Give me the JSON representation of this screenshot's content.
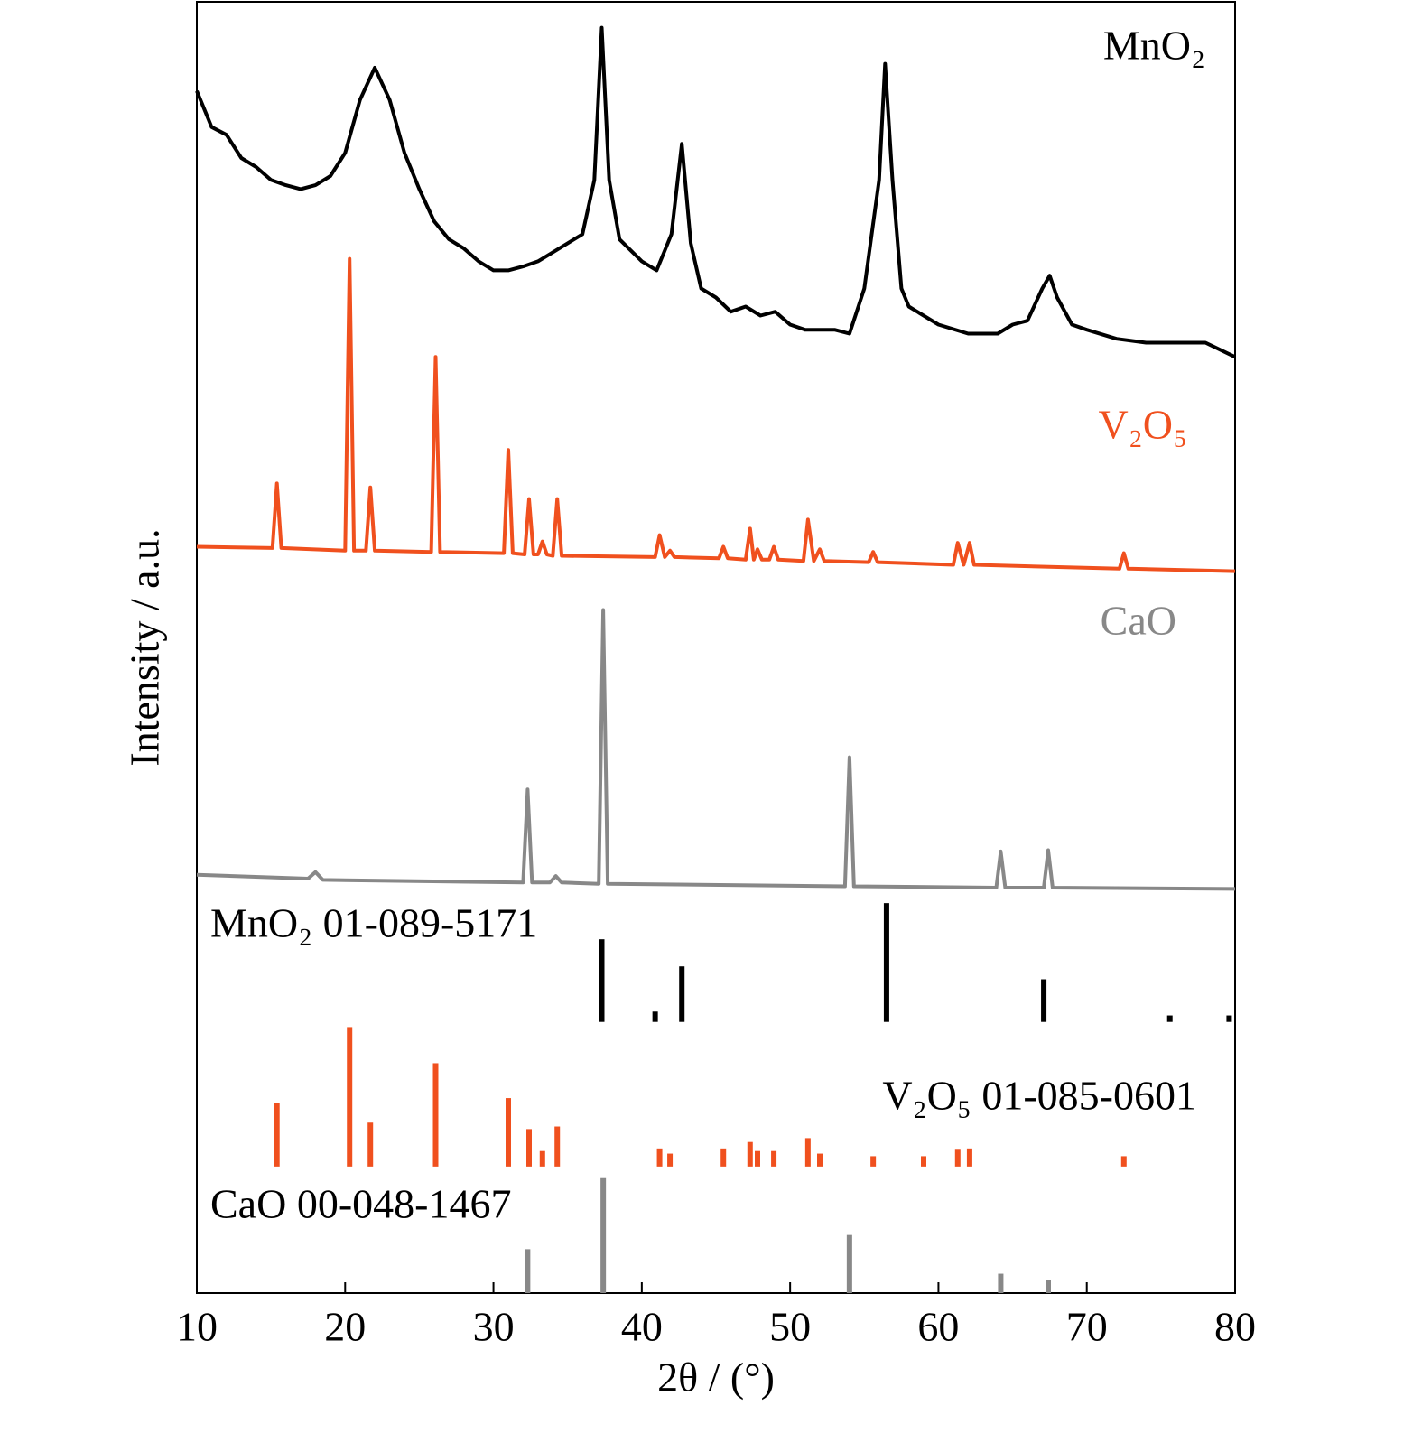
{
  "chart_data": {
    "type": "xrd",
    "x_label": "2θ / (°)",
    "y_label": "Intensity / a.u.",
    "xlim": [
      10,
      80
    ],
    "xticks": [
      10,
      20,
      30,
      40,
      50,
      60,
      70,
      80
    ],
    "ylim": [
      0,
      100
    ],
    "series": [
      {
        "name": "MnO₂",
        "type": "line",
        "color": "#000000",
        "x": [
          10,
          11,
          12,
          13,
          14,
          15,
          16,
          17,
          18,
          19,
          20,
          21,
          22,
          23,
          24,
          25,
          26,
          27,
          28,
          29,
          30,
          31,
          32,
          33,
          34,
          35,
          36,
          36.8,
          37.3,
          37.8,
          38.5,
          40,
          41,
          42,
          42.7,
          43.3,
          44,
          45,
          46,
          47,
          48,
          49,
          50,
          51,
          52,
          53,
          54,
          55,
          56,
          56.4,
          56.9,
          57.5,
          58,
          60,
          62,
          64,
          65,
          66,
          67,
          67.5,
          68,
          69,
          70,
          72,
          74,
          76,
          78,
          80
        ],
        "values": [
          93.1,
          90.3,
          89.7,
          87.9,
          87.2,
          86.2,
          85.8,
          85.5,
          85.8,
          86.5,
          88.3,
          92.4,
          94.9,
          92.4,
          88.3,
          85.5,
          83.0,
          81.6,
          80.9,
          79.9,
          79.2,
          79.2,
          79.5,
          79.9,
          80.6,
          81.3,
          82.0,
          86.2,
          98.0,
          86.2,
          81.6,
          79.9,
          79.2,
          82.0,
          89.0,
          81.3,
          77.8,
          77.1,
          76.0,
          76.4,
          75.7,
          76.0,
          75.0,
          74.6,
          74.6,
          74.6,
          74.3,
          77.8,
          86.2,
          95.2,
          86.2,
          77.8,
          76.4,
          75.0,
          74.3,
          74.3,
          75.0,
          75.3,
          77.8,
          78.8,
          77.1,
          75.0,
          74.6,
          73.9,
          73.6,
          73.6,
          73.6,
          72.5
        ]
      },
      {
        "name": "V₂O₅",
        "type": "line",
        "color": "#f0501e",
        "x": [
          10,
          15.1,
          15.4,
          15.7,
          20.0,
          20.3,
          20.6,
          21.4,
          21.7,
          22.0,
          25.8,
          26.1,
          26.4,
          30.7,
          31.0,
          31.3,
          32.1,
          32.4,
          32.7,
          33.0,
          33.3,
          33.6,
          34.0,
          34.3,
          34.6,
          40.9,
          41.2,
          41.55,
          41.9,
          42.2,
          45.2,
          45.5,
          45.8,
          47.0,
          47.3,
          47.55,
          47.8,
          48.1,
          48.6,
          48.9,
          49.2,
          50.9,
          51.2,
          51.6,
          52.0,
          52.3,
          55.3,
          55.6,
          55.9,
          61.0,
          61.3,
          61.7,
          62.1,
          62.4,
          72.2,
          72.5,
          72.8,
          80
        ],
        "values": [
          57.8,
          57.7,
          62.7,
          57.7,
          57.5,
          80.1,
          57.5,
          57.5,
          62.4,
          57.5,
          57.4,
          72.5,
          57.4,
          57.3,
          65.3,
          57.3,
          57.2,
          61.5,
          57.2,
          57.2,
          58.2,
          57.2,
          57.1,
          61.5,
          57.1,
          57.0,
          58.7,
          57.0,
          57.5,
          57.0,
          56.9,
          57.8,
          56.9,
          56.8,
          59.2,
          56.8,
          57.6,
          56.8,
          56.8,
          57.8,
          56.8,
          56.7,
          59.9,
          56.7,
          57.6,
          56.7,
          56.6,
          57.4,
          56.6,
          56.4,
          58.1,
          56.4,
          58.1,
          56.4,
          56.1,
          57.3,
          56.1,
          55.9
        ]
      },
      {
        "name": "CaO",
        "type": "line",
        "color": "#888888",
        "x": [
          10,
          17.5,
          18.0,
          18.5,
          32.0,
          32.3,
          32.6,
          33.8,
          34.2,
          34.6,
          37.1,
          37.4,
          37.7,
          53.7,
          54.0,
          54.3,
          63.9,
          64.2,
          64.5,
          67.1,
          67.4,
          67.7,
          80
        ],
        "values": [
          32.4,
          32.1,
          32.6,
          32.0,
          31.8,
          39.0,
          31.8,
          31.8,
          32.3,
          31.8,
          31.7,
          52.9,
          31.7,
          31.5,
          41.5,
          31.5,
          31.4,
          34.2,
          31.4,
          31.4,
          34.3,
          31.4,
          31.3
        ]
      },
      {
        "name": "MnO₂ 01-089-5171",
        "type": "stick",
        "color": "#000000",
        "baseline": 21.0,
        "x": [
          37.3,
          40.9,
          42.7,
          56.5,
          67.1,
          75.6,
          79.6
        ],
        "values": [
          27.4,
          21.8,
          25.3,
          30.2,
          24.3,
          21.5,
          21.5
        ]
      },
      {
        "name": "V₂O₅ 01-085-0601",
        "type": "stick",
        "color": "#f0501e",
        "baseline": 9.8,
        "x": [
          15.4,
          20.3,
          21.7,
          26.1,
          31.0,
          32.4,
          33.3,
          34.3,
          41.2,
          41.9,
          45.5,
          47.3,
          47.8,
          48.9,
          51.2,
          52.0,
          55.6,
          59.0,
          61.3,
          62.1,
          72.5
        ],
        "values": [
          14.7,
          20.6,
          13.2,
          17.8,
          15.1,
          12.7,
          11.0,
          12.9,
          11.2,
          10.8,
          11.2,
          11.7,
          11.0,
          11.0,
          12.0,
          10.8,
          10.6,
          10.6,
          11.1,
          11.2,
          10.6
        ]
      },
      {
        "name": "CaO 00-048-1467",
        "type": "stick",
        "color": "#888888",
        "baseline": 0,
        "x": [
          32.3,
          37.4,
          54.0,
          64.2,
          67.4
        ],
        "values": [
          3.4,
          8.9,
          4.5,
          1.5,
          1.0
        ]
      }
    ]
  }
}
